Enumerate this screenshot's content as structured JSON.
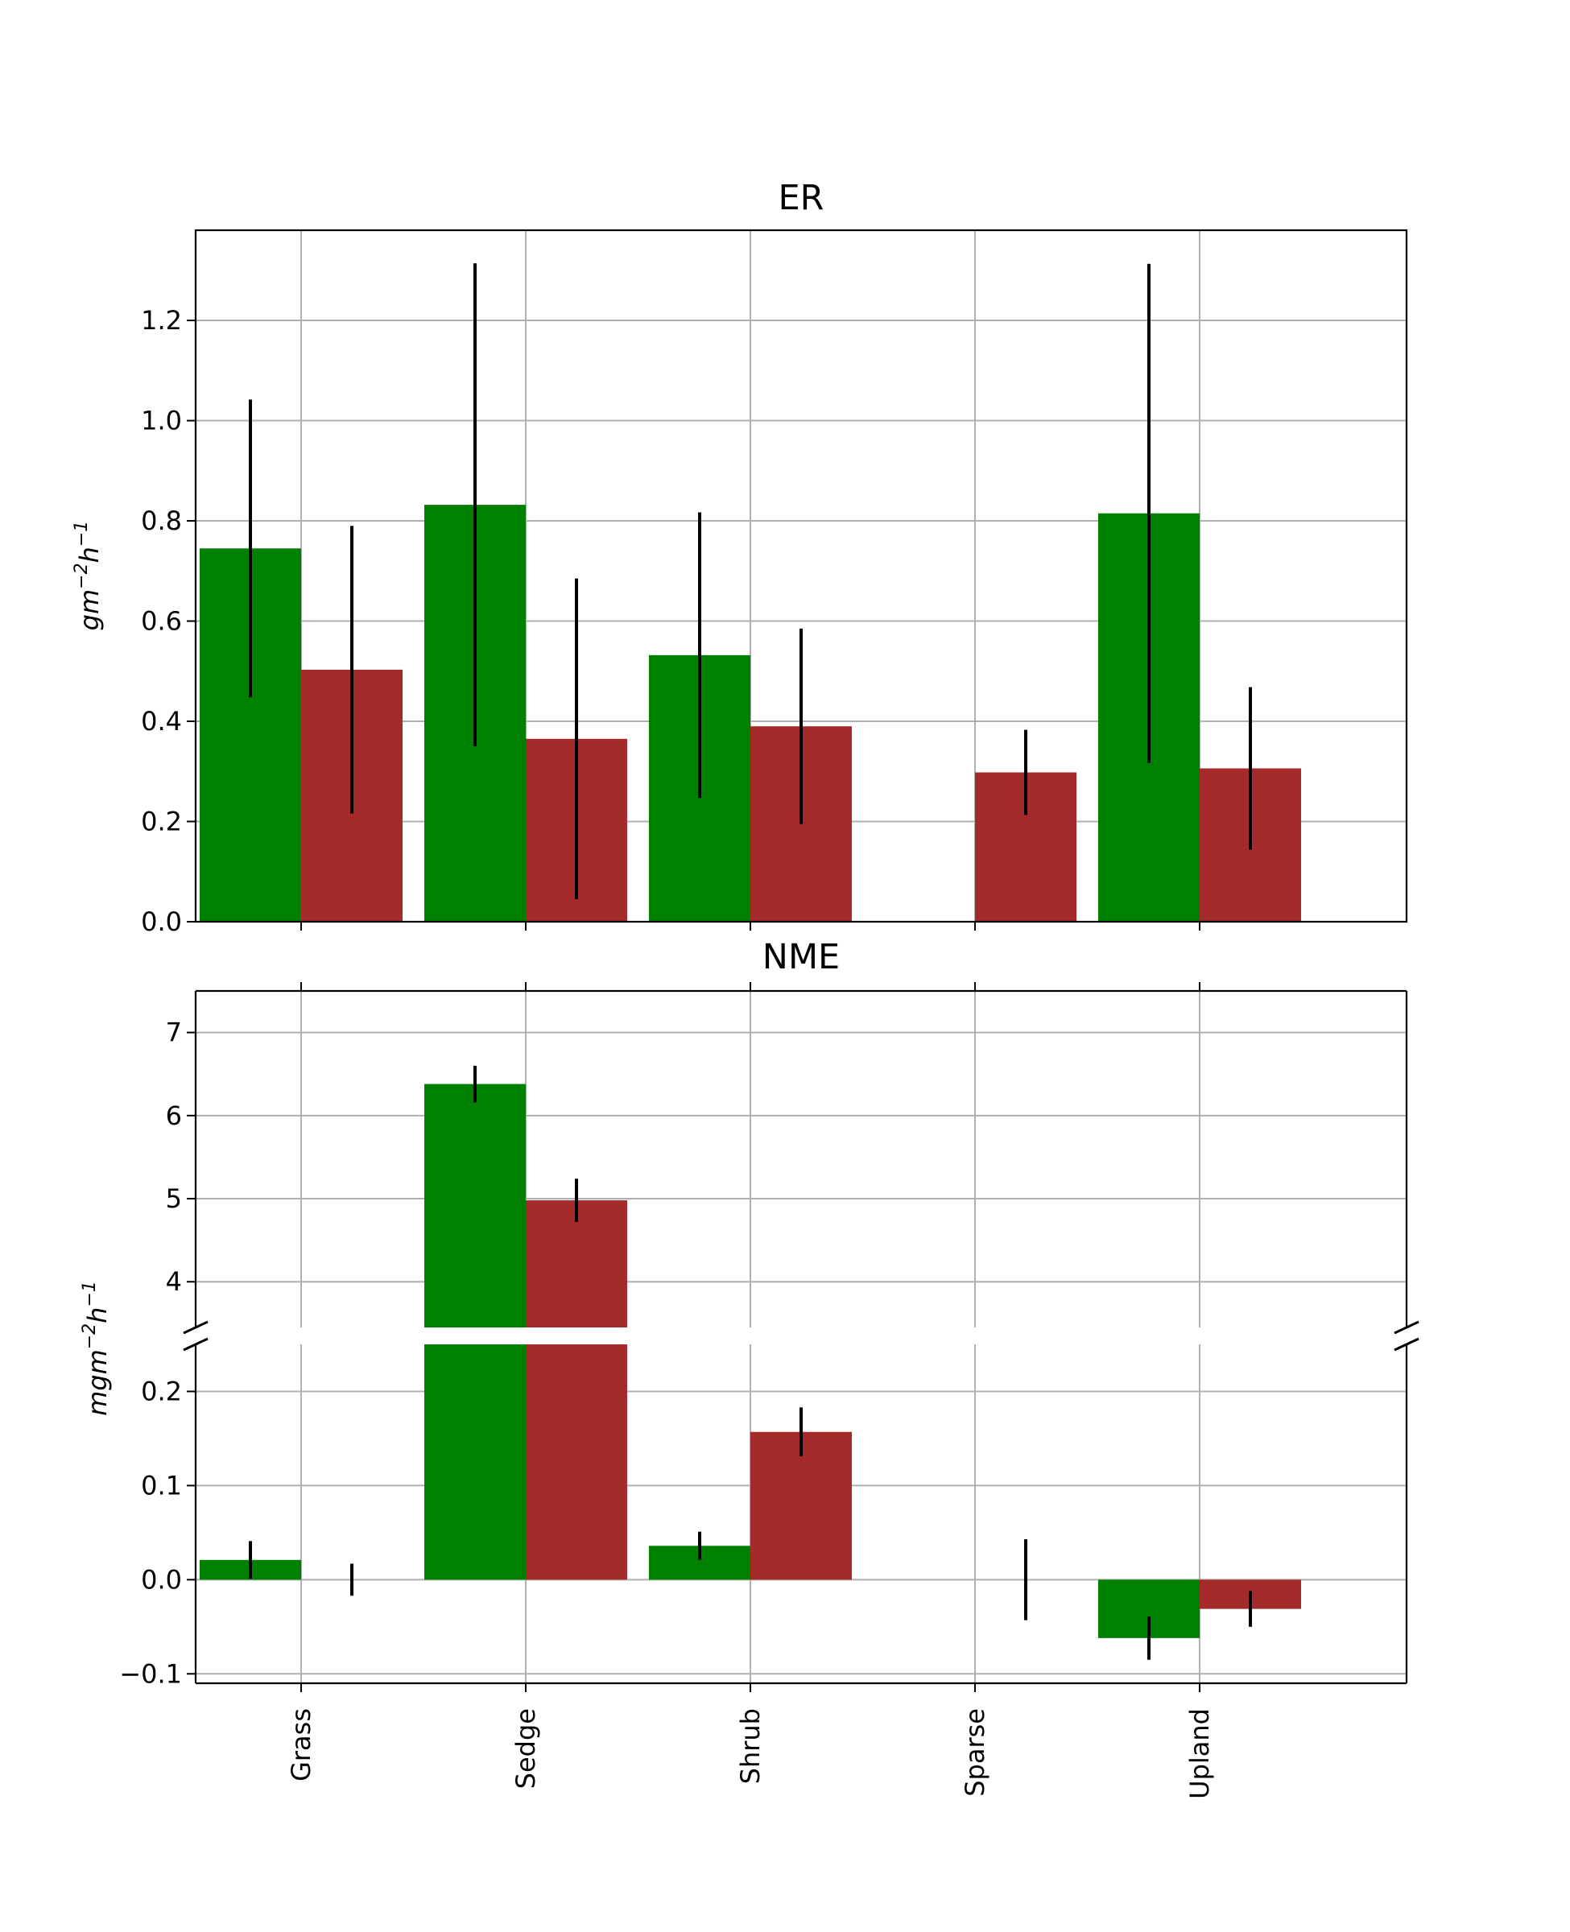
{
  "chart_data": [
    {
      "type": "bar",
      "title": "ER",
      "xlabel": "",
      "ylabel_base": "gm",
      "ylabel_exp1": "−2",
      "ylabel_mid": "h",
      "ylabel_exp2": "−1",
      "ylim": [
        0,
        1.38
      ],
      "yticks": [
        0.0,
        0.2,
        0.4,
        0.6,
        0.8,
        1.0,
        1.2
      ],
      "ytick_labels": [
        "0.0",
        "0.2",
        "0.4",
        "0.6",
        "0.8",
        "1.0",
        "1.2"
      ],
      "grid": true,
      "categories": [
        "Grass",
        "Sedge",
        "Shrub",
        "Sparse",
        "Upland"
      ],
      "series": [
        {
          "color": "#008000",
          "values": [
            0.745,
            0.832,
            0.532,
            null,
            0.815
          ],
          "err": [
            0.297,
            0.482,
            0.285,
            null,
            0.498
          ]
        },
        {
          "color": "#a52a2a",
          "values": [
            0.503,
            0.365,
            0.39,
            0.298,
            0.306
          ],
          "err": [
            0.287,
            0.32,
            0.195,
            0.085,
            0.162
          ]
        }
      ]
    },
    {
      "type": "bar",
      "title": "NME",
      "xlabel": "",
      "ylabel_base": "mgm",
      "ylabel_exp1": "−2",
      "ylabel_mid": "h",
      "ylabel_exp2": "−1",
      "broken_axis": true,
      "upper_ylim": [
        3.45,
        7.5
      ],
      "upper_yticks": [
        4,
        5,
        6,
        7
      ],
      "upper_ytick_labels": [
        "4",
        "5",
        "6",
        "7"
      ],
      "lower_ylim": [
        -0.11,
        0.25
      ],
      "lower_yticks": [
        -0.1,
        0.0,
        0.1,
        0.2
      ],
      "lower_ytick_labels": [
        "−0.1",
        "0.0",
        "0.1",
        "0.2"
      ],
      "grid": true,
      "categories": [
        "Grass",
        "Sedge",
        "Shrub",
        "Sparse",
        "Upland"
      ],
      "series": [
        {
          "color": "#008000",
          "values": [
            0.021,
            6.38,
            0.036,
            null,
            -0.062
          ],
          "err": [
            0.02,
            0.22,
            0.015,
            null,
            0.023
          ]
        },
        {
          "color": "#a52a2a",
          "values": [
            0.0,
            4.98,
            0.157,
            0.0,
            -0.031
          ],
          "err": [
            0.017,
            0.26,
            0.026,
            0.043,
            0.019
          ]
        }
      ]
    }
  ]
}
